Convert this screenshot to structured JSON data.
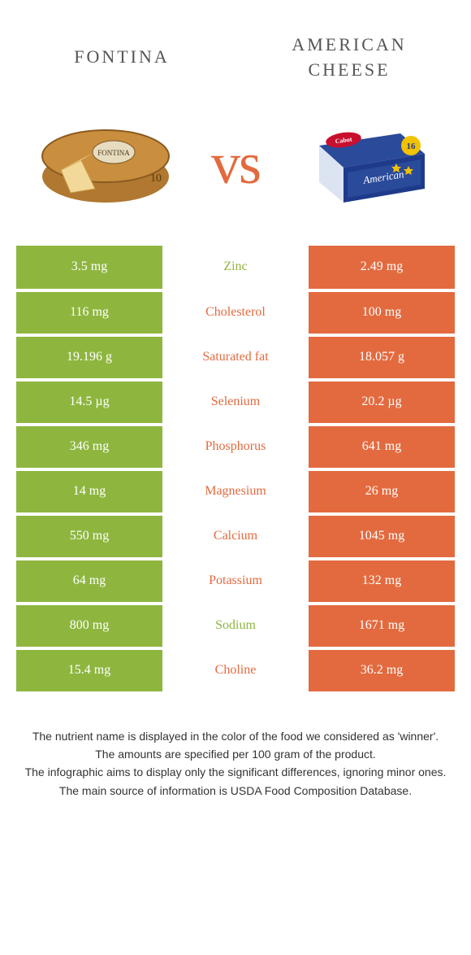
{
  "colors": {
    "green": "#8eb63f",
    "orange": "#e36a3f",
    "white": "#ffffff",
    "text_on_color": "#ffffff"
  },
  "header": {
    "left_title": "Fontina",
    "right_title": "American cheese"
  },
  "vs_label": "vs",
  "nutrients": [
    {
      "name": "Zinc",
      "left": "3.5 mg",
      "right": "2.49 mg",
      "winner": "left"
    },
    {
      "name": "Cholesterol",
      "left": "116 mg",
      "right": "100 mg",
      "winner": "right"
    },
    {
      "name": "Saturated fat",
      "left": "19.196 g",
      "right": "18.057 g",
      "winner": "right"
    },
    {
      "name": "Selenium",
      "left": "14.5 µg",
      "right": "20.2 µg",
      "winner": "right"
    },
    {
      "name": "Phosphorus",
      "left": "346 mg",
      "right": "641 mg",
      "winner": "right"
    },
    {
      "name": "Magnesium",
      "left": "14 mg",
      "right": "26 mg",
      "winner": "right"
    },
    {
      "name": "Calcium",
      "left": "550 mg",
      "right": "1045 mg",
      "winner": "right"
    },
    {
      "name": "Potassium",
      "left": "64 mg",
      "right": "132 mg",
      "winner": "right"
    },
    {
      "name": "Sodium",
      "left": "800 mg",
      "right": "1671 mg",
      "winner": "left"
    },
    {
      "name": "Choline",
      "left": "15.4 mg",
      "right": "36.2 mg",
      "winner": "right"
    }
  ],
  "footnotes": [
    "The nutrient name is displayed in the color of the food we considered as 'winner'.",
    "The amounts are specified per 100 gram of the product.",
    "The infographic aims to display only the significant differences, ignoring minor ones.",
    "The main source of information is USDA Food Composition Database."
  ]
}
